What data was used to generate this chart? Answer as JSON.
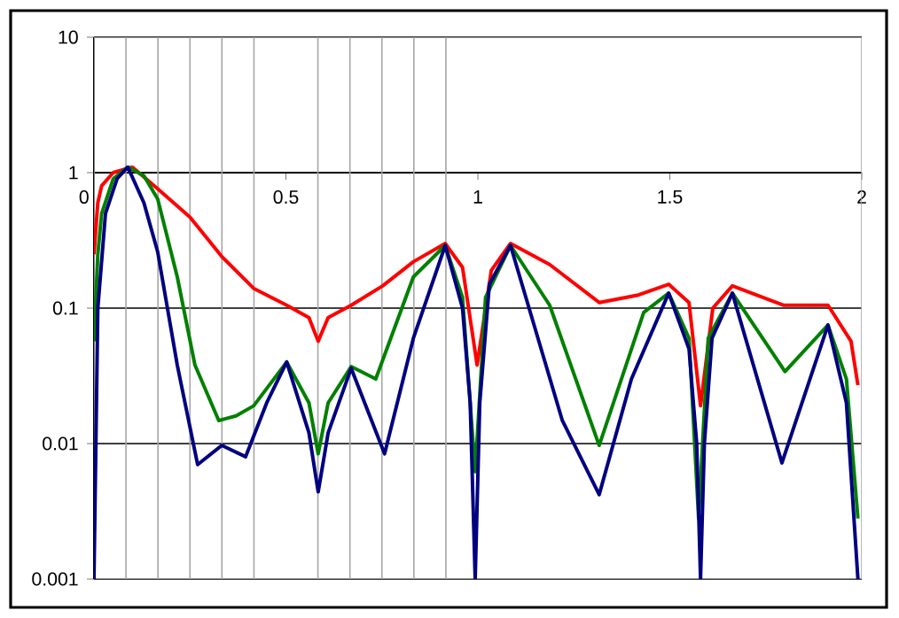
{
  "chart_data": {
    "type": "line",
    "log": "y",
    "grid": true,
    "xlim": [
      0,
      2
    ],
    "ylim": [
      0.001,
      10
    ],
    "xticks": [
      0,
      0.5,
      1,
      1.5,
      2,
      {
        "value": 0.0833,
        "label": null
      },
      {
        "value": 0.1667,
        "label": null
      },
      {
        "value": 0.25,
        "label": null
      },
      {
        "value": 0.3333,
        "label": null
      },
      {
        "value": 0.4167,
        "label": null
      },
      {
        "value": 0.5833,
        "label": null
      },
      {
        "value": 0.6667,
        "label": null
      },
      {
        "value": 0.75,
        "label": null
      },
      {
        "value": 0.8333,
        "label": null
      },
      {
        "value": 0.9167,
        "label": null
      }
    ],
    "yticks": [
      0.001,
      0.01,
      0.1,
      1,
      10
    ],
    "series": [
      {
        "color": "#ff0000",
        "x": [
          0,
          0.01,
          0.02,
          0.05,
          0.1,
          0.166,
          0.25,
          0.333,
          0.416,
          0.502,
          0.56,
          0.584,
          0.61,
          0.67,
          0.752,
          0.832,
          0.915,
          0.96,
          0.998,
          1.035,
          1.085,
          1.187,
          1.316,
          1.418,
          1.497,
          1.55,
          1.58,
          1.612,
          1.663,
          1.797,
          1.912,
          1.972,
          1.99
        ],
        "values": [
          0.25,
          0.6,
          0.8,
          1.0,
          1.1,
          0.76,
          0.47,
          0.24,
          0.14,
          0.105,
          0.085,
          0.057,
          0.085,
          0.105,
          0.146,
          0.22,
          0.3,
          0.2,
          0.038,
          0.19,
          0.3,
          0.21,
          0.11,
          0.125,
          0.15,
          0.11,
          0.019,
          0.1,
          0.146,
          0.105,
          0.105,
          0.057,
          0.027
        ]
      },
      {
        "color": "#008000",
        "x": [
          0,
          0.01,
          0.02,
          0.05,
          0.088,
          0.13,
          0.166,
          0.217,
          0.263,
          0.325,
          0.37,
          0.416,
          0.502,
          0.56,
          0.584,
          0.61,
          0.67,
          0.734,
          0.832,
          0.915,
          0.96,
          0.993,
          1.02,
          1.085,
          1.187,
          1.316,
          1.432,
          1.497,
          1.55,
          1.575,
          1.6,
          1.663,
          1.8,
          1.912,
          1.96,
          1.99
        ],
        "values": [
          0.057,
          0.25,
          0.5,
          0.9,
          1.1,
          0.95,
          0.64,
          0.17,
          0.038,
          0.0148,
          0.016,
          0.019,
          0.04,
          0.02,
          0.0084,
          0.02,
          0.037,
          0.03,
          0.17,
          0.29,
          0.12,
          0.0062,
          0.12,
          0.29,
          0.105,
          0.0097,
          0.093,
          0.129,
          0.06,
          0.0028,
          0.06,
          0.129,
          0.034,
          0.075,
          0.03,
          0.0028
        ]
      },
      {
        "color": "#000080",
        "x": [
          0,
          0.01,
          0.03,
          0.06,
          0.088,
          0.13,
          0.166,
          0.217,
          0.27,
          0.333,
          0.395,
          0.45,
          0.502,
          0.56,
          0.584,
          0.61,
          0.67,
          0.757,
          0.832,
          0.915,
          0.96,
          0.98,
          0.993,
          1.005,
          1.03,
          1.085,
          1.22,
          1.316,
          1.4,
          1.497,
          1.55,
          1.57,
          1.58,
          1.59,
          1.61,
          1.663,
          1.792,
          1.912,
          1.96,
          1.99
        ],
        "values": [
          0.001,
          0.1,
          0.5,
          0.9,
          1.1,
          0.6,
          0.26,
          0.038,
          0.007,
          0.0097,
          0.008,
          0.02,
          0.04,
          0.012,
          0.0044,
          0.012,
          0.036,
          0.0084,
          0.06,
          0.29,
          0.1,
          0.02,
          0.001,
          0.02,
          0.15,
          0.29,
          0.0148,
          0.0042,
          0.03,
          0.129,
          0.05,
          0.01,
          0.001,
          0.01,
          0.06,
          0.129,
          0.0072,
          0.075,
          0.02,
          0.001
        ]
      }
    ]
  }
}
